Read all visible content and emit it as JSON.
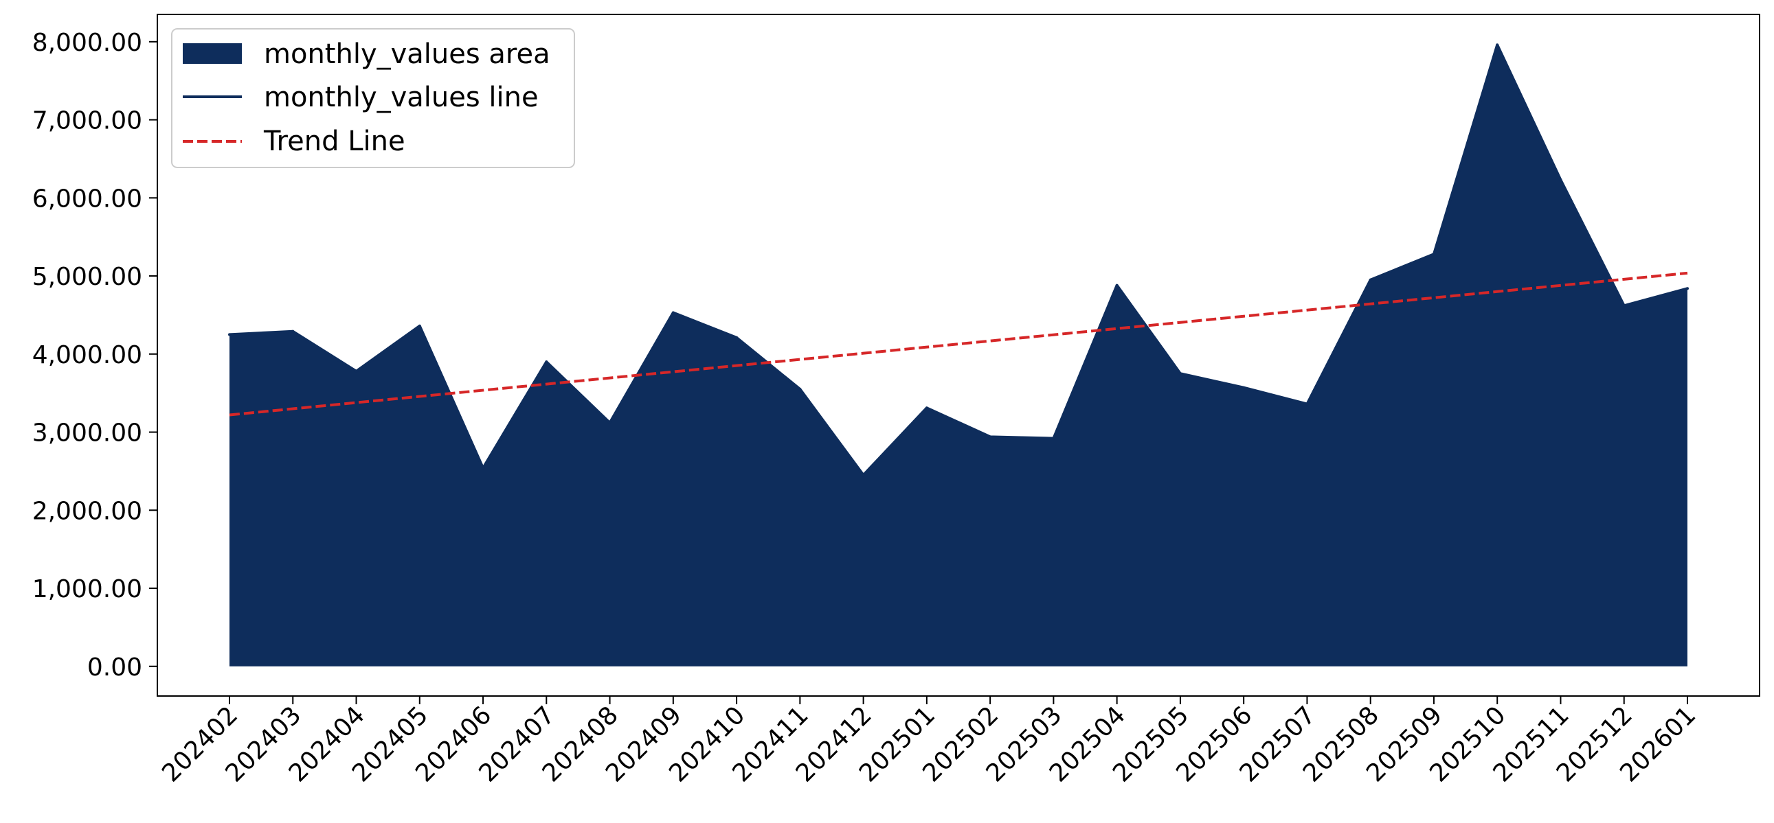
{
  "chart_data": {
    "type": "area",
    "title": "",
    "xlabel": "",
    "ylabel": "",
    "categories": [
      "202402",
      "202403",
      "202404",
      "202405",
      "202406",
      "202407",
      "202408",
      "202409",
      "202410",
      "202411",
      "202412",
      "202501",
      "202502",
      "202503",
      "202504",
      "202505",
      "202506",
      "202507",
      "202508",
      "202509",
      "202510",
      "202511",
      "202512",
      "202601"
    ],
    "series": [
      {
        "name": "monthly_values area",
        "kind": "area",
        "color": "#0e2d5c",
        "values": [
          4250,
          4290,
          3780,
          4360,
          2540,
          3900,
          3120,
          4530,
          4210,
          3550,
          2450,
          3310,
          2940,
          2920,
          4880,
          3750,
          3570,
          3360,
          4950,
          5280,
          7960,
          6230,
          4620,
          4840
        ]
      },
      {
        "name": "monthly_values line",
        "kind": "line",
        "color": "#0e2d5c",
        "values": [
          4250,
          4290,
          3780,
          4360,
          2540,
          3900,
          3120,
          4530,
          4210,
          3550,
          2450,
          3310,
          2940,
          2920,
          4880,
          3750,
          3570,
          3360,
          4950,
          5280,
          7960,
          6230,
          4620,
          4840
        ]
      },
      {
        "name": "Trend Line",
        "kind": "trend",
        "color": "#d62728",
        "values": [
          3220,
          3299,
          3378,
          3457,
          3536,
          3615,
          3694,
          3773,
          3852,
          3931,
          4010,
          4089,
          4168,
          4247,
          4326,
          4405,
          4484,
          4563,
          4642,
          4721,
          4800,
          4879,
          4958,
          5037
        ]
      }
    ],
    "ylim": [
      -380,
      8350
    ],
    "yticks": [
      0,
      1000,
      2000,
      3000,
      4000,
      5000,
      6000,
      7000,
      8000
    ],
    "ytick_labels": [
      "0.00",
      "1,000.00",
      "2,000.00",
      "3,000.00",
      "4,000.00",
      "5,000.00",
      "6,000.00",
      "7,000.00",
      "8,000.00"
    ],
    "grid": false,
    "legend_position": "top-left"
  }
}
